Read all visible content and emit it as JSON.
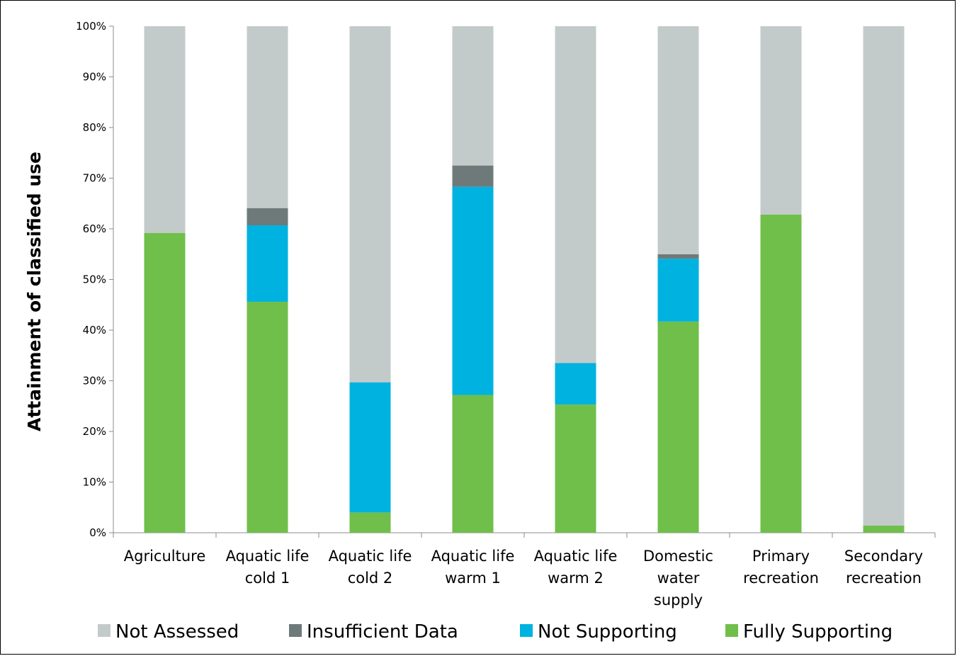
{
  "chart_data": {
    "type": "bar",
    "stacked": true,
    "orientation": "vertical",
    "title": "",
    "xlabel": "",
    "ylabel": "Attainment of classified use",
    "ylim": [
      0,
      100
    ],
    "y_ticks": [
      0,
      10,
      20,
      30,
      40,
      50,
      60,
      70,
      80,
      90,
      100
    ],
    "y_tick_labels": [
      "0%",
      "10%",
      "20%",
      "30%",
      "40%",
      "50%",
      "60%",
      "70%",
      "80%",
      "90%",
      "100%"
    ],
    "y_unit": "%",
    "grid": false,
    "legend_position": "bottom",
    "categories": [
      [
        "Agriculture"
      ],
      [
        "Aquatic life",
        "cold 1"
      ],
      [
        "Aquatic life",
        "cold 2"
      ],
      [
        "Aquatic life",
        "warm 1"
      ],
      [
        "Aquatic life",
        "warm 2"
      ],
      [
        "Domestic",
        "water",
        "supply"
      ],
      [
        "Primary",
        "recreation"
      ],
      [
        "Secondary",
        "recreation"
      ]
    ],
    "series": [
      {
        "name": "Fully Supporting",
        "color": "#70bf4b",
        "values": [
          59.2,
          45.6,
          4.0,
          27.2,
          25.3,
          41.7,
          62.8,
          1.4
        ]
      },
      {
        "name": "Not Supporting",
        "color": "#00b2e0",
        "values": [
          0,
          15.1,
          25.7,
          41.1,
          8.2,
          12.4,
          0,
          0
        ]
      },
      {
        "name": "Insufficient Data",
        "color": "#6e7a7a",
        "values": [
          0,
          3.4,
          0,
          4.2,
          0,
          0.9,
          0,
          0
        ]
      },
      {
        "name": "Not Assessed",
        "color": "#c3cbca",
        "values": [
          40.8,
          35.9,
          70.3,
          27.5,
          66.5,
          45.0,
          37.2,
          98.6
        ]
      }
    ],
    "legend_order": [
      "Not Assessed",
      "Insufficient Data",
      "Not Supporting",
      "Fully Supporting"
    ]
  }
}
